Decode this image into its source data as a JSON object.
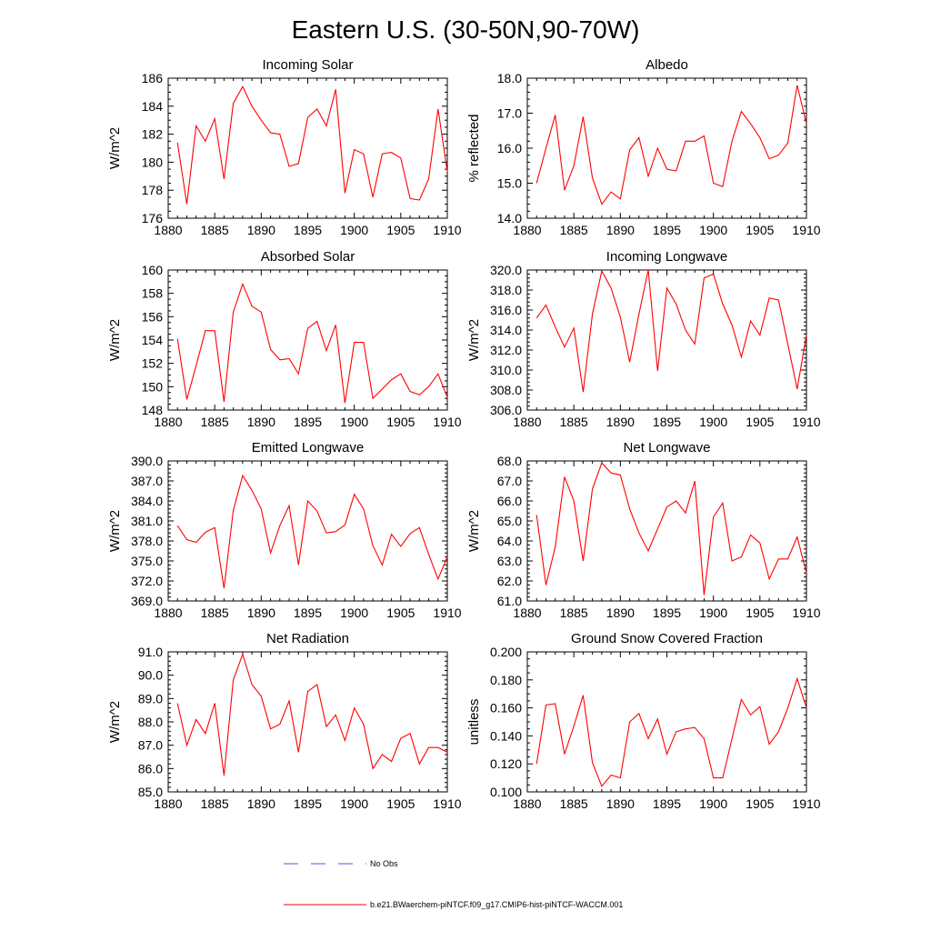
{
  "figure_title": "Eastern U.S. (30-50N,90-70W)",
  "legend": {
    "entries": [
      {
        "label": "No Obs",
        "color": "#4a5bd8",
        "style": "dashed"
      },
      {
        "label": "b.e21.BWaerchem-piNTCF.f09_g17.CMIP6-hist-piNTCF-WACCM.001",
        "color": "#ff0000",
        "style": "solid"
      }
    ]
  },
  "chart_data": [
    {
      "type": "line",
      "title": "Incoming Solar",
      "xlabel": "",
      "ylabel": "W/m^2",
      "xlim": [
        1880,
        1910
      ],
      "ylim": [
        176,
        186
      ],
      "grid": false,
      "yticks": [
        "176",
        "178",
        "180",
        "182",
        "184",
        "186"
      ],
      "ytick_step": 2,
      "yminor_step": 0.5,
      "xticks": [
        "1880",
        "1885",
        "1890",
        "1895",
        "1900",
        "1905",
        "1910"
      ],
      "series": [
        {
          "color": "#ff0000",
          "x": [
            1881,
            1882,
            1883,
            1884,
            1885,
            1886,
            1887,
            1888,
            1889,
            1890,
            1891,
            1892,
            1893,
            1894,
            1895,
            1896,
            1897,
            1898,
            1899,
            1900,
            1901,
            1902,
            1903,
            1904,
            1905,
            1906,
            1907,
            1908,
            1909,
            1910
          ],
          "values": [
            181.4,
            177.0,
            182.6,
            181.5,
            183.1,
            178.8,
            184.2,
            185.4,
            184.0,
            183.0,
            182.1,
            182.0,
            179.7,
            179.9,
            183.2,
            183.8,
            182.6,
            185.2,
            177.8,
            180.9,
            180.6,
            177.5,
            180.6,
            180.7,
            180.3,
            177.4,
            177.3,
            178.8,
            183.8,
            179.3
          ]
        }
      ]
    },
    {
      "type": "line",
      "title": "Albedo",
      "xlabel": "",
      "ylabel": "% reflected",
      "xlim": [
        1880,
        1910
      ],
      "ylim": [
        14.0,
        18.0
      ],
      "grid": false,
      "yticks": [
        "14.0",
        "15.0",
        "16.0",
        "17.0",
        "18.0"
      ],
      "ytick_step": 1,
      "yminor_step": 0.2,
      "xticks": [
        "1880",
        "1885",
        "1890",
        "1895",
        "1900",
        "1905",
        "1910"
      ],
      "series": [
        {
          "color": "#ff0000",
          "x": [
            1881,
            1882,
            1883,
            1884,
            1885,
            1886,
            1887,
            1888,
            1889,
            1890,
            1891,
            1892,
            1893,
            1894,
            1895,
            1896,
            1897,
            1898,
            1899,
            1900,
            1901,
            1902,
            1903,
            1904,
            1905,
            1906,
            1907,
            1908,
            1909,
            1910
          ],
          "values": [
            15.0,
            16.0,
            16.95,
            14.8,
            15.5,
            16.9,
            15.15,
            14.4,
            14.75,
            14.55,
            15.95,
            16.3,
            15.2,
            16.0,
            15.4,
            15.35,
            16.2,
            16.2,
            16.35,
            15.0,
            14.9,
            16.2,
            17.05,
            16.7,
            16.3,
            15.7,
            15.8,
            16.15,
            17.8,
            16.7
          ]
        }
      ]
    },
    {
      "type": "line",
      "title": "Absorbed Solar",
      "xlabel": "",
      "ylabel": "W/m^2",
      "xlim": [
        1880,
        1910
      ],
      "ylim": [
        148,
        160
      ],
      "grid": false,
      "yticks": [
        "148",
        "150",
        "152",
        "154",
        "156",
        "158",
        "160"
      ],
      "ytick_step": 2,
      "yminor_step": 0.5,
      "xticks": [
        "1880",
        "1885",
        "1890",
        "1895",
        "1900",
        "1905",
        "1910"
      ],
      "series": [
        {
          "color": "#ff0000",
          "x": [
            1881,
            1882,
            1883,
            1884,
            1885,
            1886,
            1887,
            1888,
            1889,
            1890,
            1891,
            1892,
            1893,
            1894,
            1895,
            1896,
            1897,
            1898,
            1899,
            1900,
            1901,
            1902,
            1903,
            1904,
            1905,
            1906,
            1907,
            1908,
            1909,
            1910
          ],
          "values": [
            154.1,
            148.9,
            151.8,
            154.8,
            154.8,
            148.7,
            156.4,
            158.8,
            156.9,
            156.4,
            153.2,
            152.3,
            152.4,
            151.1,
            155.0,
            155.6,
            153.1,
            155.3,
            148.6,
            153.8,
            153.8,
            149.0,
            149.8,
            150.6,
            151.1,
            149.6,
            149.3,
            150.0,
            151.1,
            149.1
          ]
        }
      ]
    },
    {
      "type": "line",
      "title": "Incoming Longwave",
      "xlabel": "",
      "ylabel": "W/m^2",
      "xlim": [
        1880,
        1910
      ],
      "ylim": [
        306.0,
        320.0
      ],
      "grid": false,
      "yticks": [
        "306.0",
        "308.0",
        "310.0",
        "312.0",
        "314.0",
        "316.0",
        "318.0",
        "320.0"
      ],
      "ytick_step": 2,
      "yminor_step": 0.4,
      "xticks": [
        "1880",
        "1885",
        "1890",
        "1895",
        "1900",
        "1905",
        "1910"
      ],
      "series": [
        {
          "color": "#ff0000",
          "x": [
            1881,
            1882,
            1883,
            1884,
            1885,
            1886,
            1887,
            1888,
            1889,
            1890,
            1891,
            1892,
            1893,
            1894,
            1895,
            1896,
            1897,
            1898,
            1899,
            1900,
            1901,
            1902,
            1903,
            1904,
            1905,
            1906,
            1907,
            1908,
            1909,
            1910
          ],
          "values": [
            315.2,
            316.5,
            314.3,
            312.3,
            314.2,
            307.8,
            315.6,
            319.9,
            318.2,
            315.3,
            310.8,
            315.6,
            320.0,
            309.9,
            318.2,
            316.6,
            314.0,
            312.6,
            319.2,
            319.6,
            316.6,
            314.5,
            311.3,
            314.9,
            313.5,
            317.2,
            317.0,
            312.6,
            308.1,
            313.5
          ]
        }
      ]
    },
    {
      "type": "line",
      "title": "Emitted Longwave",
      "xlabel": "",
      "ylabel": "W/m^2",
      "xlim": [
        1880,
        1910
      ],
      "ylim": [
        369.0,
        390.0
      ],
      "grid": false,
      "yticks": [
        "369.0",
        "372.0",
        "375.0",
        "378.0",
        "381.0",
        "384.0",
        "387.0",
        "390.0"
      ],
      "ytick_step": 3,
      "yminor_step": 0.6,
      "xticks": [
        "1880",
        "1885",
        "1890",
        "1895",
        "1900",
        "1905",
        "1910"
      ],
      "series": [
        {
          "color": "#ff0000",
          "x": [
            1881,
            1882,
            1883,
            1884,
            1885,
            1886,
            1887,
            1888,
            1889,
            1890,
            1891,
            1892,
            1893,
            1894,
            1895,
            1896,
            1897,
            1898,
            1899,
            1900,
            1901,
            1902,
            1903,
            1904,
            1905,
            1906,
            1907,
            1908,
            1909,
            1910
          ],
          "values": [
            380.3,
            378.2,
            377.8,
            379.3,
            380.0,
            370.9,
            382.6,
            387.8,
            385.6,
            382.8,
            376.2,
            380.3,
            383.3,
            374.4,
            384.0,
            382.5,
            379.2,
            379.4,
            380.4,
            385.0,
            382.8,
            377.3,
            374.4,
            379.0,
            377.2,
            379.1,
            380.0,
            376.0,
            372.3,
            375.6
          ]
        }
      ]
    },
    {
      "type": "line",
      "title": "Net Longwave",
      "xlabel": "",
      "ylabel": "W/m^2",
      "xlim": [
        1880,
        1910
      ],
      "ylim": [
        61.0,
        68.0
      ],
      "grid": false,
      "yticks": [
        "61.0",
        "62.0",
        "63.0",
        "64.0",
        "65.0",
        "66.0",
        "67.0",
        "68.0"
      ],
      "ytick_step": 1,
      "yminor_step": 0.2,
      "xticks": [
        "1880",
        "1885",
        "1890",
        "1895",
        "1900",
        "1905",
        "1910"
      ],
      "series": [
        {
          "color": "#ff0000",
          "x": [
            1881,
            1882,
            1883,
            1884,
            1885,
            1886,
            1887,
            1888,
            1889,
            1890,
            1891,
            1892,
            1893,
            1894,
            1895,
            1896,
            1897,
            1898,
            1899,
            1900,
            1901,
            1902,
            1903,
            1904,
            1905,
            1906,
            1907,
            1908,
            1909,
            1910
          ],
          "values": [
            65.3,
            61.8,
            63.7,
            67.2,
            66.0,
            63.0,
            66.6,
            67.9,
            67.4,
            67.3,
            65.6,
            64.4,
            63.5,
            64.6,
            65.7,
            66.0,
            65.4,
            67.0,
            61.3,
            65.2,
            65.9,
            63.0,
            63.2,
            64.3,
            63.9,
            62.1,
            63.1,
            63.1,
            64.2,
            62.4
          ]
        }
      ]
    },
    {
      "type": "line",
      "title": "Net Radiation",
      "xlabel": "",
      "ylabel": "W/m^2",
      "xlim": [
        1880,
        1910
      ],
      "ylim": [
        85.0,
        91.0
      ],
      "grid": false,
      "yticks": [
        "85.0",
        "86.0",
        "87.0",
        "88.0",
        "89.0",
        "90.0",
        "91.0"
      ],
      "ytick_step": 1,
      "yminor_step": 0.2,
      "xticks": [
        "1880",
        "1885",
        "1890",
        "1895",
        "1900",
        "1905",
        "1910"
      ],
      "series": [
        {
          "color": "#ff0000",
          "x": [
            1881,
            1882,
            1883,
            1884,
            1885,
            1886,
            1887,
            1888,
            1889,
            1890,
            1891,
            1892,
            1893,
            1894,
            1895,
            1896,
            1897,
            1898,
            1899,
            1900,
            1901,
            1902,
            1903,
            1904,
            1905,
            1906,
            1907,
            1908,
            1909,
            1910
          ],
          "values": [
            88.8,
            87.0,
            88.1,
            87.5,
            88.8,
            85.7,
            89.8,
            90.9,
            89.6,
            89.1,
            87.7,
            87.9,
            88.9,
            86.7,
            89.3,
            89.6,
            87.8,
            88.3,
            87.2,
            88.6,
            87.9,
            86.0,
            86.6,
            86.3,
            87.3,
            87.5,
            86.2,
            86.9,
            86.9,
            86.7
          ]
        }
      ]
    },
    {
      "type": "line",
      "title": "Ground Snow Covered Fraction",
      "xlabel": "",
      "ylabel": "unitless",
      "xlim": [
        1880,
        1910
      ],
      "ylim": [
        0.1,
        0.2
      ],
      "grid": false,
      "yticks": [
        "0.100",
        "0.120",
        "0.140",
        "0.160",
        "0.180",
        "0.200"
      ],
      "ytick_step": 0.02,
      "yminor_step": 0.005,
      "xticks": [
        "1880",
        "1885",
        "1890",
        "1895",
        "1900",
        "1905",
        "1910"
      ],
      "series": [
        {
          "color": "#ff0000",
          "x": [
            1881,
            1882,
            1883,
            1884,
            1885,
            1886,
            1887,
            1888,
            1889,
            1890,
            1891,
            1892,
            1893,
            1894,
            1895,
            1896,
            1897,
            1898,
            1899,
            1900,
            1901,
            1902,
            1903,
            1904,
            1905,
            1906,
            1907,
            1908,
            1909,
            1910
          ],
          "values": [
            0.12,
            0.162,
            0.163,
            0.127,
            0.147,
            0.169,
            0.121,
            0.104,
            0.112,
            0.11,
            0.15,
            0.156,
            0.138,
            0.152,
            0.127,
            0.143,
            0.145,
            0.146,
            0.138,
            0.11,
            0.11,
            0.138,
            0.166,
            0.155,
            0.161,
            0.134,
            0.143,
            0.16,
            0.181,
            0.16
          ]
        }
      ]
    }
  ]
}
